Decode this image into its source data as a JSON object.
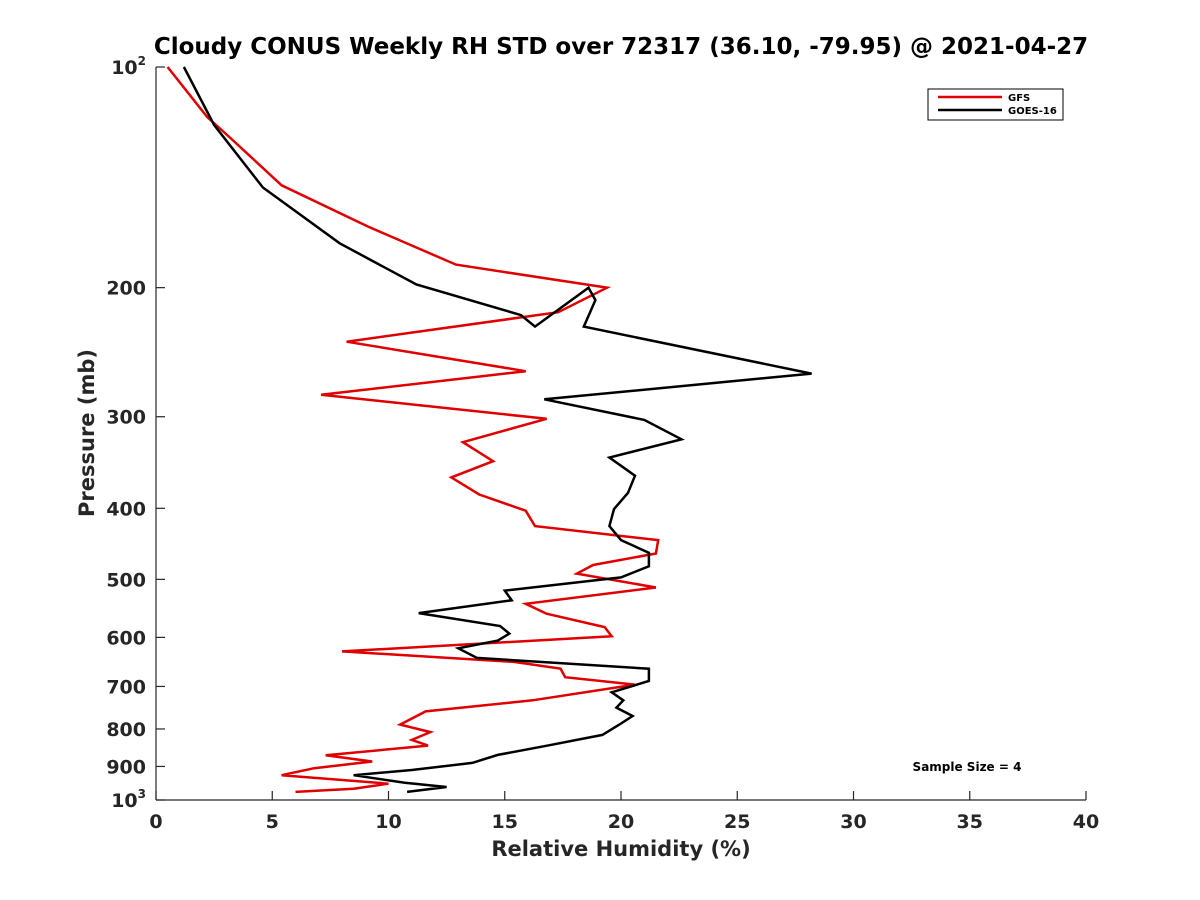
{
  "chart_data": {
    "type": "line",
    "title": "Cloudy CONUS Weekly RH STD over 72317 (36.10, -79.95) @ 2021-04-27",
    "xlabel": "Relative Humidity (%)",
    "ylabel": "Pressure (mb)",
    "xlim": [
      0,
      40
    ],
    "ylim": [
      100,
      1000
    ],
    "y_scale": "log",
    "y_reversed": true,
    "grid": false,
    "legend_position": "top-right",
    "x_ticks": [
      "0",
      "5",
      "10",
      "15",
      "20",
      "25",
      "30",
      "35",
      "40"
    ],
    "y_ticks": [
      {
        "value": 100,
        "base": "10",
        "exp": "2"
      },
      {
        "value": 200,
        "label": "200"
      },
      {
        "value": 300,
        "label": "300"
      },
      {
        "value": 400,
        "label": "400"
      },
      {
        "value": 500,
        "label": "500"
      },
      {
        "value": 600,
        "label": "600"
      },
      {
        "value": 700,
        "label": "700"
      },
      {
        "value": 800,
        "label": "800"
      },
      {
        "value": 900,
        "label": "900"
      },
      {
        "value": 1000,
        "base": "10",
        "exp": "3"
      }
    ],
    "annotation": "Sample Size = 4",
    "series": [
      {
        "name": "GFS",
        "color": "#e00000",
        "points": [
          [
            0.5,
            100
          ],
          [
            2.2,
            117
          ],
          [
            3.2,
            125
          ],
          [
            5.4,
            145
          ],
          [
            9.1,
            165
          ],
          [
            12.9,
            186
          ],
          [
            19.4,
            200
          ],
          [
            17.3,
            216
          ],
          [
            8.2,
            237
          ],
          [
            15.9,
            260
          ],
          [
            7.1,
            280
          ],
          [
            16.8,
            302
          ],
          [
            13.2,
            325
          ],
          [
            14.5,
            345
          ],
          [
            12.7,
            363
          ],
          [
            13.9,
            383
          ],
          [
            15.9,
            403
          ],
          [
            16.3,
            423
          ],
          [
            21.6,
            442
          ],
          [
            21.5,
            461
          ],
          [
            18.8,
            478
          ],
          [
            18.1,
            491
          ],
          [
            21.5,
            513
          ],
          [
            15.9,
            540
          ],
          [
            16.8,
            557
          ],
          [
            19.3,
            581
          ],
          [
            19.6,
            598
          ],
          [
            8.0,
            627
          ],
          [
            15.4,
            648
          ],
          [
            17.4,
            662
          ],
          [
            17.6,
            680
          ],
          [
            20.6,
            696
          ],
          [
            16.2,
            731
          ],
          [
            11.6,
            757
          ],
          [
            10.5,
            789
          ],
          [
            11.8,
            808
          ],
          [
            11.0,
            828
          ],
          [
            11.7,
            843
          ],
          [
            7.3,
            869
          ],
          [
            9.3,
            886
          ],
          [
            6.8,
            905
          ],
          [
            5.4,
            925
          ],
          [
            10.0,
            950
          ],
          [
            8.5,
            965
          ],
          [
            6.0,
            975
          ]
        ]
      },
      {
        "name": "GOES-16",
        "color": "#000000",
        "points": [
          [
            1.2,
            100
          ],
          [
            2.5,
            120
          ],
          [
            4.6,
            146
          ],
          [
            7.9,
            174
          ],
          [
            11.2,
            198
          ],
          [
            15.7,
            218
          ],
          [
            16.3,
            226
          ],
          [
            18.6,
            200
          ],
          [
            18.9,
            208
          ],
          [
            18.4,
            226
          ],
          [
            28.2,
            262
          ],
          [
            16.7,
            284
          ],
          [
            21.0,
            303
          ],
          [
            22.6,
            322
          ],
          [
            19.5,
            341
          ],
          [
            20.6,
            361
          ],
          [
            20.3,
            381
          ],
          [
            19.7,
            401
          ],
          [
            19.5,
            423
          ],
          [
            20.0,
            442
          ],
          [
            21.2,
            460
          ],
          [
            21.2,
            480
          ],
          [
            20.0,
            497
          ],
          [
            15.0,
            518
          ],
          [
            15.3,
            534
          ],
          [
            11.3,
            556
          ],
          [
            14.8,
            579
          ],
          [
            15.2,
            593
          ],
          [
            14.7,
            606
          ],
          [
            13.0,
            621
          ],
          [
            13.8,
            640
          ],
          [
            21.2,
            662
          ],
          [
            21.2,
            688
          ],
          [
            19.6,
            713
          ],
          [
            20.1,
            731
          ],
          [
            19.8,
            748
          ],
          [
            20.5,
            768
          ],
          [
            19.9,
            790
          ],
          [
            19.2,
            815
          ],
          [
            16.9,
            842
          ],
          [
            14.7,
            868
          ],
          [
            13.6,
            890
          ],
          [
            11.0,
            910
          ],
          [
            8.5,
            925
          ],
          [
            10.7,
            947
          ],
          [
            12.5,
            960
          ],
          [
            10.8,
            975
          ]
        ]
      }
    ]
  }
}
